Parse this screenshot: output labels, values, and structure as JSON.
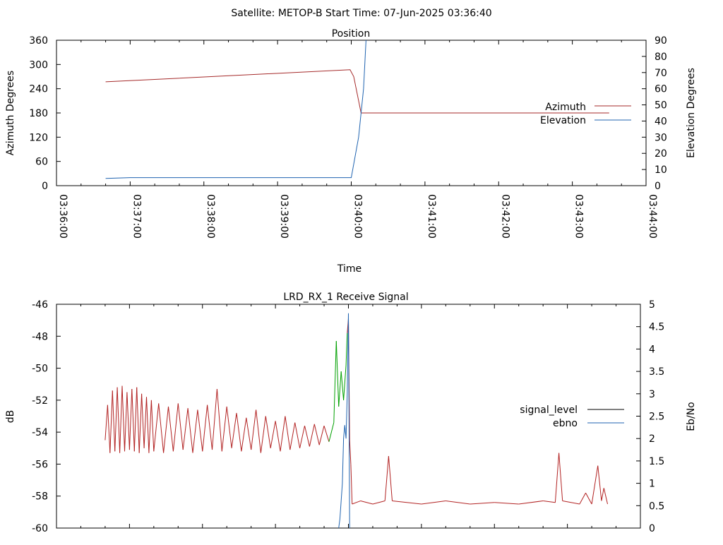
{
  "header": {
    "title": "Satellite: METOP-B    Start Time: 07-Jun-2025 03:36:40"
  },
  "colors": {
    "azimuth": "#a52a2a",
    "elevation": "#1f63b0",
    "signal_level": "#000000",
    "ebno": "#1f63b0",
    "signal_red": "#b22222",
    "signal_green": "#00a000"
  },
  "chart_data": [
    {
      "type": "line",
      "title": "Position",
      "xlabel": "Time",
      "ylabel": "Azimuth Degrees",
      "y2label": "Elevation Degrees",
      "xlim": [
        "03:36:00",
        "03:44:00"
      ],
      "ylim": [
        0,
        360
      ],
      "y2lim": [
        0,
        90
      ],
      "x_ticks": [
        "03:36:00",
        "03:37:00",
        "03:38:00",
        "03:39:00",
        "03:40:00",
        "03:41:00",
        "03:42:00",
        "03:43:00",
        "03:44:00"
      ],
      "y_ticks": [
        0,
        60,
        120,
        180,
        240,
        300,
        360
      ],
      "y2_ticks": [
        0,
        10,
        20,
        30,
        40,
        50,
        60,
        70,
        80,
        90
      ],
      "legend": "right",
      "series": [
        {
          "name": "Azimuth",
          "axis": "left",
          "points": [
            [
              "03:36:40",
              257
            ],
            [
              "03:39:59",
              287
            ],
            [
              "03:40:02",
              270
            ],
            [
              "03:40:08",
              180
            ],
            [
              "03:43:30",
              180
            ]
          ]
        },
        {
          "name": "Elevation",
          "axis": "right",
          "points": [
            [
              "03:36:40",
              4.5
            ],
            [
              "03:37:00",
              5
            ],
            [
              "03:39:30",
              5
            ],
            [
              "03:40:00",
              5
            ],
            [
              "03:40:06",
              30
            ],
            [
              "03:40:10",
              60
            ],
            [
              "03:40:12",
              90
            ]
          ]
        }
      ]
    },
    {
      "type": "line",
      "title": "LRD_RX_1 Receive Signal",
      "ylabel": "dB",
      "y2label": "Eb/No",
      "xlim": [
        "03:36:00",
        "03:44:00"
      ],
      "ylim": [
        -60,
        -46
      ],
      "y2lim": [
        0,
        5
      ],
      "y_ticks": [
        -60,
        -58,
        -56,
        -54,
        -52,
        -50,
        -48,
        -46
      ],
      "y2_ticks": [
        "0",
        "0.5",
        "1",
        "1.5",
        "2",
        "2.5",
        "3",
        "3.5",
        "4",
        "4.5",
        "5"
      ],
      "legend": "right",
      "series": [
        {
          "name": "signal_level",
          "axis": "left",
          "points": [
            [
              "03:36:40",
              -54.5
            ],
            [
              "03:36:42",
              -52.3
            ],
            [
              "03:36:44",
              -55.3
            ],
            [
              "03:36:46",
              -51.4
            ],
            [
              "03:36:48",
              -55.2
            ],
            [
              "03:36:50",
              -51.2
            ],
            [
              "03:36:52",
              -55.3
            ],
            [
              "03:36:54",
              -51.1
            ],
            [
              "03:36:56",
              -55.2
            ],
            [
              "03:36:58",
              -51.5
            ],
            [
              "03:37:00",
              -55.1
            ],
            [
              "03:37:02",
              -51.3
            ],
            [
              "03:37:04",
              -55.2
            ],
            [
              "03:37:06",
              -51.2
            ],
            [
              "03:37:08",
              -55.3
            ],
            [
              "03:37:10",
              -51.6
            ],
            [
              "03:37:12",
              -55.0
            ],
            [
              "03:37:14",
              -51.8
            ],
            [
              "03:37:16",
              -55.3
            ],
            [
              "03:37:18",
              -52.0
            ],
            [
              "03:37:20",
              -55.2
            ],
            [
              "03:37:24",
              -52.2
            ],
            [
              "03:37:28",
              -55.3
            ],
            [
              "03:37:32",
              -52.4
            ],
            [
              "03:37:36",
              -55.2
            ],
            [
              "03:37:40",
              -52.2
            ],
            [
              "03:37:44",
              -55.1
            ],
            [
              "03:37:48",
              -52.5
            ],
            [
              "03:37:52",
              -55.3
            ],
            [
              "03:37:56",
              -52.6
            ],
            [
              "03:38:00",
              -55.2
            ],
            [
              "03:38:04",
              -52.3
            ],
            [
              "03:38:08",
              -55.1
            ],
            [
              "03:38:12",
              -51.3
            ],
            [
              "03:38:16",
              -55.2
            ],
            [
              "03:38:20",
              -52.4
            ],
            [
              "03:38:24",
              -55.0
            ],
            [
              "03:38:28",
              -52.8
            ],
            [
              "03:38:32",
              -55.2
            ],
            [
              "03:38:36",
              -53.1
            ],
            [
              "03:38:40",
              -55.1
            ],
            [
              "03:38:44",
              -52.6
            ],
            [
              "03:38:48",
              -55.3
            ],
            [
              "03:38:52",
              -53.0
            ],
            [
              "03:38:56",
              -55.0
            ],
            [
              "03:39:00",
              -53.3
            ],
            [
              "03:39:04",
              -55.2
            ],
            [
              "03:39:08",
              -53.0
            ],
            [
              "03:39:12",
              -55.1
            ],
            [
              "03:39:16",
              -53.4
            ],
            [
              "03:39:20",
              -55.0
            ],
            [
              "03:39:24",
              -53.6
            ],
            [
              "03:39:28",
              -54.9
            ],
            [
              "03:39:32",
              -53.5
            ],
            [
              "03:39:36",
              -54.8
            ],
            [
              "03:39:40",
              -53.6
            ],
            [
              "03:39:44",
              -54.6
            ],
            [
              "03:39:48",
              -53.4
            ],
            [
              "03:39:50",
              -48.3
            ],
            [
              "03:39:52",
              -52.4
            ],
            [
              "03:39:54",
              -50.2
            ],
            [
              "03:39:56",
              -52.0
            ],
            [
              "03:39:58",
              -49.8
            ],
            [
              "03:39:59",
              -47.8
            ],
            [
              "03:40:00",
              -46.9
            ],
            [
              "03:40:01",
              -54.5
            ],
            [
              "03:40:02",
              -56.0
            ],
            [
              "03:40:03",
              -58.5
            ],
            [
              "03:40:10",
              -58.3
            ],
            [
              "03:40:20",
              -58.5
            ],
            [
              "03:40:30",
              -58.3
            ],
            [
              "03:40:33",
              -55.5
            ],
            [
              "03:40:36",
              -58.3
            ],
            [
              "03:41:00",
              -58.5
            ],
            [
              "03:41:20",
              -58.3
            ],
            [
              "03:41:40",
              -58.5
            ],
            [
              "03:42:00",
              -58.4
            ],
            [
              "03:42:20",
              -58.5
            ],
            [
              "03:42:40",
              -58.3
            ],
            [
              "03:42:50",
              -58.4
            ],
            [
              "03:42:53",
              -55.3
            ],
            [
              "03:42:56",
              -58.3
            ],
            [
              "03:43:10",
              -58.5
            ],
            [
              "03:43:15",
              -57.8
            ],
            [
              "03:43:20",
              -58.5
            ],
            [
              "03:43:25",
              -56.1
            ],
            [
              "03:43:28",
              -58.3
            ],
            [
              "03:43:30",
              -57.5
            ],
            [
              "03:43:33",
              -58.5
            ]
          ]
        },
        {
          "name": "ebno",
          "axis": "right",
          "points": [
            [
              "03:39:52",
              0
            ],
            [
              "03:39:53",
              0.2
            ],
            [
              "03:39:55",
              1.0
            ],
            [
              "03:39:56",
              2.0
            ],
            [
              "03:39:57",
              2.3
            ],
            [
              "03:39:58",
              2.0
            ],
            [
              "03:39:59",
              3.0
            ],
            [
              "03:40:00",
              4.8
            ],
            [
              "03:40:01",
              0
            ]
          ]
        }
      ]
    }
  ]
}
